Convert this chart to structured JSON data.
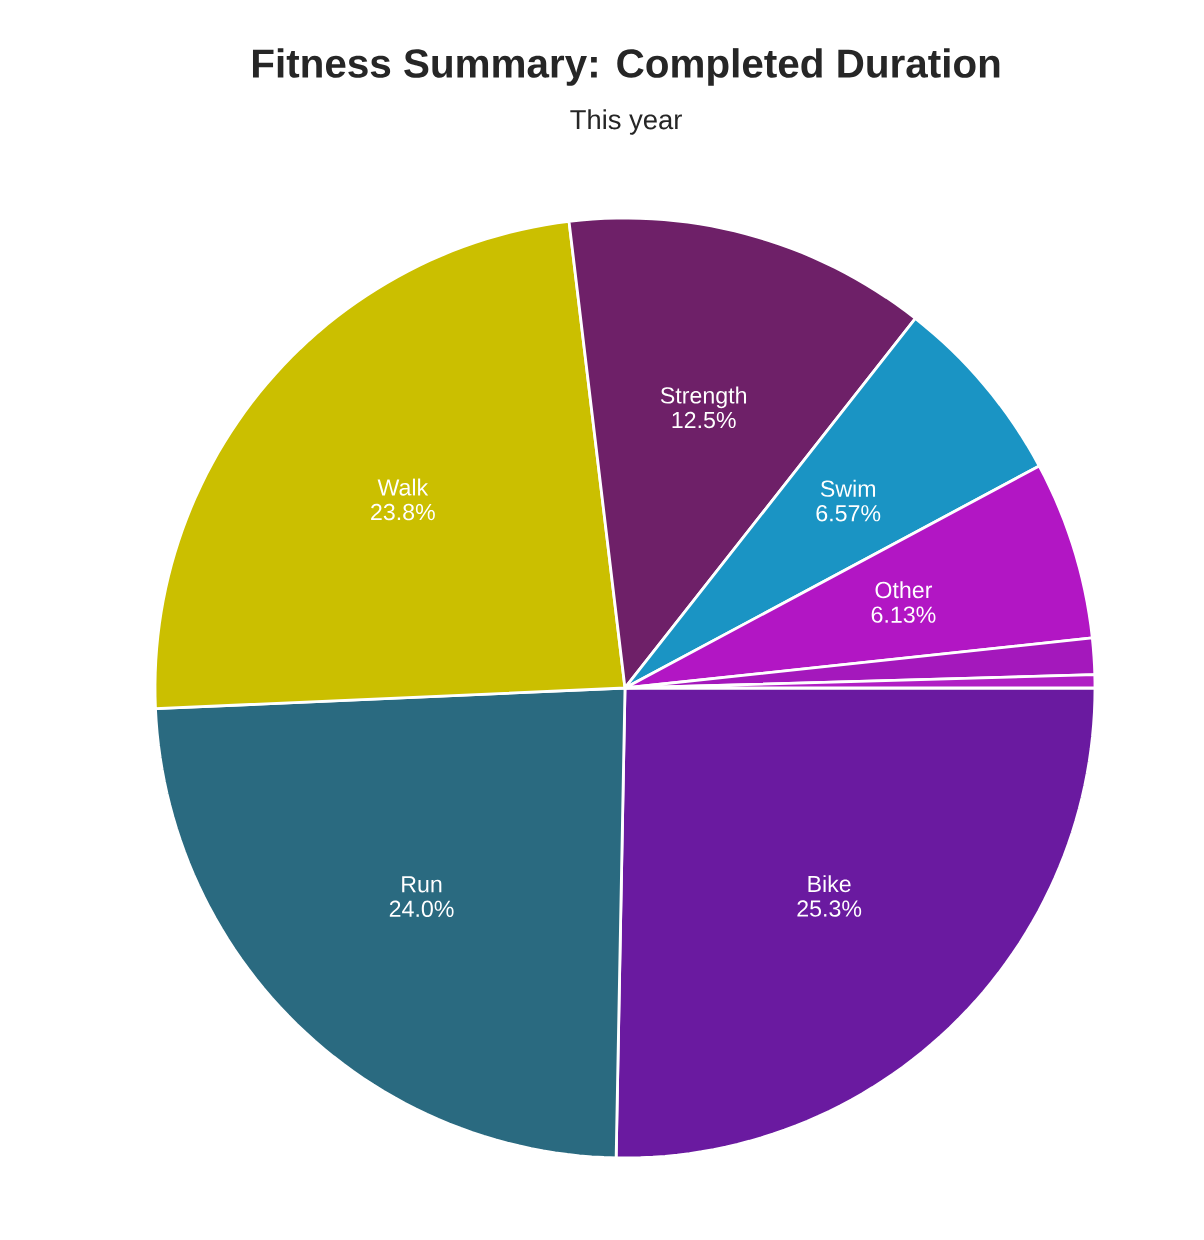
{
  "chart_data": {
    "type": "pie",
    "title": "Fitness Summary: Completed Duration",
    "subtitle": "This year",
    "categories": [
      "Bike",
      "Run",
      "Walk",
      "Strength",
      "Swim",
      "Other",
      null,
      null
    ],
    "values": [
      25.3,
      24.0,
      23.8,
      12.5,
      6.57,
      6.13,
      1.25,
      0.45
    ],
    "value_labels": [
      "25.3%",
      "24.0%",
      "23.8%",
      "12.5%",
      "6.57%",
      "6.13%",
      null,
      null
    ],
    "colors": [
      "#6a1aa0",
      "#2a6a80",
      "#cbbf00",
      "#6e2068",
      "#1a94c4",
      "#b216c4",
      "#a418bc",
      "#b01ec4"
    ]
  }
}
